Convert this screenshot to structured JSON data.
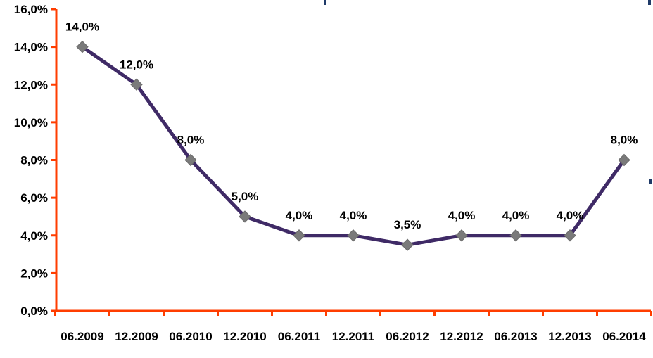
{
  "chart_data": {
    "type": "line",
    "categories": [
      "06.2009",
      "12.2009",
      "06.2010",
      "12.2010",
      "06.2011",
      "12.2011",
      "06.2012",
      "12.2012",
      "06.2013",
      "12.2013",
      "06.2014"
    ],
    "series": [
      {
        "values": [
          14.0,
          12.0,
          8.0,
          5.0,
          4.0,
          4.0,
          3.5,
          4.0,
          4.0,
          4.0,
          8.0
        ],
        "value_labels": [
          "14,0%",
          "12,0%",
          "8,0%",
          "5,0%",
          "4,0%",
          "4,0%",
          "3,5%",
          "4,0%",
          "4,0%",
          "4,0%",
          "8,0%"
        ]
      }
    ],
    "y_ticks": [
      0,
      2,
      4,
      6,
      8,
      10,
      12,
      14,
      16
    ],
    "y_tick_labels": [
      "0,0%",
      "2,0%",
      "4,0%",
      "6,0%",
      "8,0%",
      "10,0%",
      "12,0%",
      "14,0%",
      "16,0%"
    ],
    "ylim": [
      0,
      16
    ],
    "grid": false,
    "legend": "none",
    "title": "",
    "xlabel": "",
    "ylabel": "",
    "colors": {
      "line": "#3f2a66",
      "marker": "#7a7a7a",
      "axis": "#ff3d00",
      "decor": "#1f3a68"
    }
  }
}
